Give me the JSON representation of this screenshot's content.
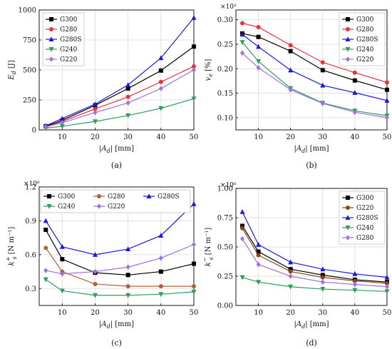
{
  "chart_data": [
    {
      "panel": "(a)",
      "type": "line",
      "ylabel": "E_d [J]",
      "xlabel": "|A_d| [mm]",
      "x": [
        5,
        10,
        20,
        30,
        40,
        50
      ],
      "xlim": [
        3,
        50
      ],
      "ylim": [
        0,
        1000
      ],
      "xticks": [
        10,
        20,
        30,
        40,
        50
      ],
      "yticks": [
        0,
        250,
        500,
        750,
        1000
      ],
      "ytick_labels": [
        "0",
        "250",
        "500",
        "750",
        "1000"
      ],
      "multiplier": "",
      "legend_position": "top-left",
      "series": [
        {
          "name": "G300",
          "color": "#000000",
          "marker": "square",
          "values": [
            30,
            80,
            205,
            345,
            495,
            695
          ]
        },
        {
          "name": "G280",
          "color": "#e8323c",
          "marker": "circle",
          "values": [
            25,
            70,
            175,
            275,
            400,
            530
          ]
        },
        {
          "name": "G280S",
          "color": "#1a1adc",
          "marker": "triangle",
          "values": [
            35,
            95,
            215,
            375,
            600,
            935
          ]
        },
        {
          "name": "G240",
          "color": "#2e9e5b",
          "marker": "tri-down",
          "values": [
            15,
            30,
            70,
            120,
            180,
            260
          ]
        },
        {
          "name": "G220",
          "color": "#a070e0",
          "marker": "diamond",
          "values": [
            25,
            60,
            145,
            225,
            345,
            500
          ]
        }
      ]
    },
    {
      "panel": "(b)",
      "type": "line",
      "ylabel": "v_e [%]",
      "xlabel": "|A_d| [mm]",
      "x": [
        5,
        10,
        20,
        30,
        40,
        50
      ],
      "xlim": [
        3,
        50
      ],
      "ylim": [
        0.075,
        0.32
      ],
      "xticks": [
        10,
        20,
        30,
        40,
        50
      ],
      "yticks": [
        0.1,
        0.15,
        0.2,
        0.25,
        0.3
      ],
      "ytick_labels": [
        "0.10",
        "0.15",
        "0.20",
        "0.25",
        "0.30"
      ],
      "multiplier": "×10²",
      "legend_position": "top-right",
      "series": [
        {
          "name": "G300",
          "color": "#000000",
          "marker": "square",
          "values": [
            0.272,
            0.265,
            0.236,
            0.197,
            0.176,
            0.157
          ]
        },
        {
          "name": "G280",
          "color": "#e8323c",
          "marker": "circle",
          "values": [
            0.293,
            0.285,
            0.248,
            0.213,
            0.192,
            0.172
          ]
        },
        {
          "name": "G280S",
          "color": "#1a1adc",
          "marker": "triangle",
          "values": [
            0.27,
            0.245,
            0.197,
            0.166,
            0.151,
            0.135
          ]
        },
        {
          "name": "G240",
          "color": "#2e9e5b",
          "marker": "tri-down",
          "values": [
            0.254,
            0.215,
            0.16,
            0.13,
            0.114,
            0.104
          ]
        },
        {
          "name": "G220",
          "color": "#a070e0",
          "marker": "diamond",
          "values": [
            0.232,
            0.202,
            0.157,
            0.129,
            0.111,
            0.1
          ]
        }
      ]
    },
    {
      "panel": "(c)",
      "type": "line",
      "ylabel": "k_s⁺ [N m⁻¹]",
      "xlabel": "|A_d| [mm]",
      "x": [
        5,
        10,
        20,
        30,
        40,
        50
      ],
      "xlim": [
        3,
        50
      ],
      "ylim": [
        0.15,
        1.2
      ],
      "xticks": [
        10,
        20,
        30,
        40,
        50
      ],
      "yticks": [
        0.3,
        0.6,
        0.9,
        1.2
      ],
      "ytick_labels": [
        "0.3",
        "0.6",
        "0.9",
        "1.2"
      ],
      "multiplier": "×10⁶",
      "legend_position": "top (3 columns)",
      "series": [
        {
          "name": "G300",
          "color": "#000000",
          "marker": "square",
          "values": [
            0.82,
            0.56,
            0.44,
            0.42,
            0.45,
            0.52
          ]
        },
        {
          "name": "G280",
          "color": "#b0603a",
          "marker": "circle",
          "values": [
            0.66,
            0.45,
            0.34,
            0.32,
            0.32,
            0.32
          ]
        },
        {
          "name": "G280S",
          "color": "#1a1adc",
          "marker": "triangle",
          "values": [
            0.9,
            0.67,
            0.6,
            0.65,
            0.77,
            1.05
          ]
        },
        {
          "name": "G240",
          "color": "#2e9e5b",
          "marker": "tri-down",
          "values": [
            0.38,
            0.28,
            0.24,
            0.24,
            0.25,
            0.27
          ]
        },
        {
          "name": "G220",
          "color": "#a070e0",
          "marker": "diamond",
          "values": [
            0.46,
            0.43,
            0.45,
            0.49,
            0.57,
            0.69
          ]
        }
      ]
    },
    {
      "panel": "(d)",
      "type": "line",
      "ylabel": "k_s⁻ [N m⁻¹]",
      "xlabel": "|A_d| [mm]",
      "x": [
        5,
        10,
        20,
        30,
        40,
        50
      ],
      "xlim": [
        3,
        50
      ],
      "ylim": [
        0,
        1.0
      ],
      "xticks": [
        10,
        20,
        30,
        40,
        50
      ],
      "yticks": [
        0.0,
        0.25,
        0.5,
        0.75,
        1.0
      ],
      "ytick_labels": [
        "0.00",
        "0.25",
        "0.50",
        "0.75",
        "1.00"
      ],
      "multiplier": "×10⁶",
      "legend_position": "top-right",
      "series": [
        {
          "name": "G300",
          "color": "#000000",
          "marker": "square",
          "values": [
            0.68,
            0.46,
            0.31,
            0.26,
            0.22,
            0.2
          ]
        },
        {
          "name": "G220",
          "color": "#8b4513",
          "marker": "circle",
          "values": [
            0.66,
            0.43,
            0.29,
            0.24,
            0.21,
            0.19
          ]
        },
        {
          "name": "G280S",
          "color": "#1a1adc",
          "marker": "triangle",
          "values": [
            0.8,
            0.52,
            0.37,
            0.31,
            0.27,
            0.24
          ]
        },
        {
          "name": "G240",
          "color": "#2e9e5b",
          "marker": "tri-down",
          "values": [
            0.24,
            0.2,
            0.16,
            0.14,
            0.13,
            0.12
          ]
        },
        {
          "name": "G280",
          "color": "#a070e0",
          "marker": "diamond",
          "values": [
            0.57,
            0.35,
            0.25,
            0.2,
            0.18,
            0.16
          ]
        }
      ]
    }
  ]
}
